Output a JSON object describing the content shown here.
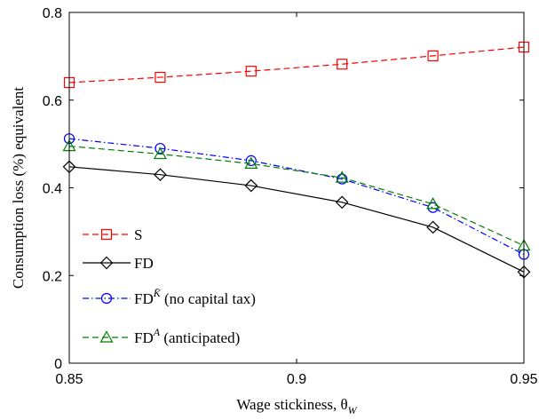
{
  "chart_data": {
    "type": "line",
    "xlabel": "Wage stickiness, θ",
    "xlabel_sub": "W",
    "ylabel": "Consumption loss (%) equivalent",
    "xlim": [
      0.85,
      0.95
    ],
    "ylim": [
      0,
      0.8
    ],
    "xticks": [
      0.85,
      0.9,
      0.95
    ],
    "xtick_labels": [
      "0.85",
      "0.9",
      "0.95"
    ],
    "yticks": [
      0,
      0.2,
      0.4,
      0.6,
      0.8
    ],
    "ytick_labels": [
      "0",
      "0.2",
      "0.4",
      "0.6",
      "0.8"
    ],
    "x": [
      0.85,
      0.87,
      0.89,
      0.91,
      0.93,
      0.95
    ],
    "grid": false,
    "legend_position": "bottom-left",
    "series": [
      {
        "name": "S",
        "values": [
          0.64,
          0.652,
          0.666,
          0.682,
          0.701,
          0.721
        ],
        "color": "#ff0000",
        "dash": "dashed",
        "marker": "square"
      },
      {
        "name": "FD",
        "values": [
          0.448,
          0.43,
          0.405,
          0.367,
          0.31,
          0.208
        ],
        "color": "#000000",
        "dash": "solid",
        "marker": "diamond"
      },
      {
        "name": "FD^K̄ (no capital tax)",
        "values": [
          0.512,
          0.49,
          0.462,
          0.42,
          0.355,
          0.248
        ],
        "color": "#0000ff",
        "dash": "dashdot",
        "marker": "circle"
      },
      {
        "name": "FD^A (anticipated)",
        "values": [
          0.495,
          0.477,
          0.455,
          0.423,
          0.363,
          0.268
        ],
        "color": "#008000",
        "dash": "dashed",
        "marker": "triangle"
      }
    ],
    "legend": [
      {
        "base": "S",
        "sup": "",
        "rest": ""
      },
      {
        "base": "FD",
        "sup": "",
        "rest": ""
      },
      {
        "base": "FD",
        "sup": "K̄",
        "rest": " (no capital tax)"
      },
      {
        "base": "FD",
        "sup": "A",
        "rest": " (anticipated)"
      }
    ]
  }
}
